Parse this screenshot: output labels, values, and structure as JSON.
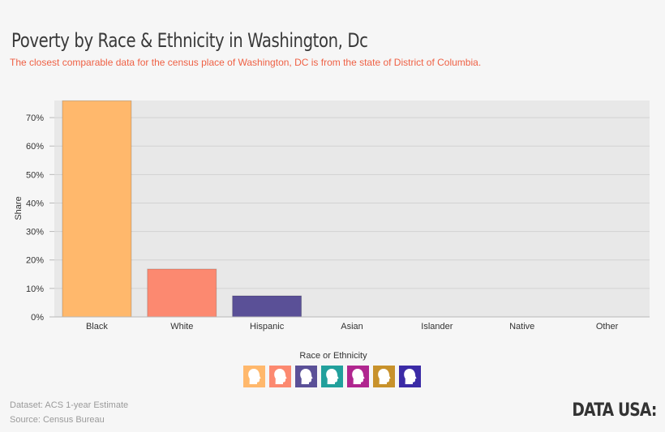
{
  "page": {
    "title": "Poverty by Race & Ethnicity in Washington, Dc",
    "subtitle": "The closest comparable data for the census place of Washington, DC is from the state of District of Columbia.",
    "dataset": "Dataset: ACS 1-year Estimate",
    "source": "Source: Census Bureau",
    "logo": "DATA USA:"
  },
  "chart_data": {
    "type": "bar",
    "title": "Poverty by Race & Ethnicity in Washington, Dc",
    "xlabel": "Race or Ethnicity",
    "ylabel": "Share",
    "categories": [
      "Black",
      "White",
      "Hispanic",
      "Asian",
      "Islander",
      "Native",
      "Other"
    ],
    "values": [
      75.9,
      16.8,
      7.4,
      0,
      0,
      0,
      0
    ],
    "colors": [
      "#ffb86c",
      "#fc8970",
      "#5a5097",
      "#22a09c",
      "#b0268f",
      "#c8922b",
      "#3b2ba6"
    ],
    "ylim": [
      0,
      76
    ],
    "yticks": [
      0,
      10,
      20,
      30,
      40,
      50,
      60,
      70
    ],
    "ytick_labels": [
      "0%",
      "10%",
      "20%",
      "30%",
      "40%",
      "50%",
      "60%",
      "70%"
    ],
    "grid": true,
    "legend_position": "bottom-center",
    "legend": [
      {
        "icon": "person-head-icon",
        "color": "#ffb86c"
      },
      {
        "icon": "person-head-icon",
        "color": "#fc8970"
      },
      {
        "icon": "person-head-icon",
        "color": "#5a5097"
      },
      {
        "icon": "person-head-icon",
        "color": "#22a09c"
      },
      {
        "icon": "person-head-icon",
        "color": "#b0268f"
      },
      {
        "icon": "person-head-icon",
        "color": "#c8922b"
      },
      {
        "icon": "person-head-icon",
        "color": "#3b2ba6"
      }
    ]
  }
}
